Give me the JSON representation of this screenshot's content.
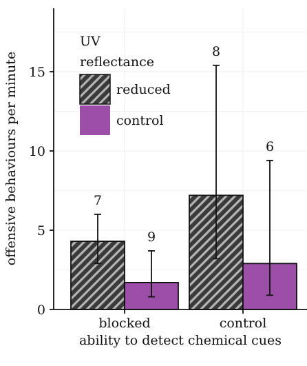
{
  "chart_data": {
    "type": "bar",
    "xlabel": "ability to detect chemical cues",
    "ylabel": "offensive behaviours per minute",
    "categories": [
      "blocked",
      "control"
    ],
    "ylim": [
      0,
      19
    ],
    "yticks": [
      0,
      5,
      10,
      15
    ],
    "grid": true,
    "legend": {
      "title_line1": "UV",
      "title_line2": "reflectance",
      "placement": "top-left"
    },
    "series": [
      {
        "name": "reduced",
        "fill": "hatched",
        "color": "#333333",
        "values": [
          4.3,
          7.2
        ],
        "error_low": [
          2.9,
          3.2
        ],
        "error_high": [
          6.0,
          15.4
        ],
        "n_labels": [
          "7",
          "8"
        ]
      },
      {
        "name": "control",
        "fill": "solid",
        "color": "#9B4FA6",
        "values": [
          1.7,
          2.9
        ],
        "error_low": [
          0.8,
          0.9
        ],
        "error_high": [
          3.7,
          9.4
        ],
        "n_labels": [
          "9",
          "6"
        ]
      }
    ]
  }
}
